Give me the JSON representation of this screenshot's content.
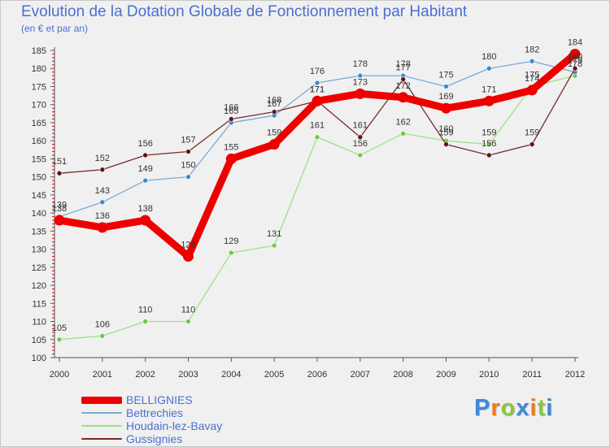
{
  "chart_data": {
    "type": "line",
    "title": "Evolution de la Dotation Globale de Fonctionnement par Habitant",
    "subtitle": "(en € et par an)",
    "xlabel": "",
    "ylabel": "",
    "x": [
      "2000",
      "2001",
      "2002",
      "2003",
      "2004",
      "2005",
      "2006",
      "2007",
      "2008",
      "2009",
      "2010",
      "2011",
      "2012"
    ],
    "ylim": [
      100,
      185
    ],
    "ystep": 5,
    "grid": false,
    "legend_position": "bottom-left",
    "series": [
      {
        "name": "Houdain-lez-Bavay",
        "color": "#9be383",
        "marker": "#72c64b",
        "width": 1.3,
        "values": [
          105,
          106,
          110,
          110,
          129,
          131,
          161,
          156,
          162,
          160,
          159,
          175,
          178
        ]
      },
      {
        "name": "Bettrechies",
        "color": "#7baad5",
        "marker": "#3f87cc",
        "width": 1.3,
        "values": [
          139,
          143,
          149,
          150,
          165,
          167,
          176,
          178,
          178,
          175,
          180,
          182,
          179
        ]
      },
      {
        "name": "Gussignies",
        "color": "#7a2a2a",
        "marker": "#5e1515",
        "width": 1.3,
        "values": [
          151,
          152,
          156,
          157,
          166,
          168,
          171,
          161,
          177,
          159,
          156,
          159,
          180
        ]
      },
      {
        "name": "BELLIGNIES",
        "color": "#ee0000",
        "marker": "#ee0000",
        "width": 9,
        "values": [
          138,
          136,
          138,
          128,
          155,
          159,
          171,
          173,
          172,
          169,
          171,
          174,
          184
        ]
      }
    ],
    "legend_order": [
      "BELLIGNIES",
      "Bettrechies",
      "Houdain-lez-Bavay",
      "Gussignies"
    ]
  },
  "brand": {
    "letters": [
      {
        "ch": "P",
        "color": "#3c8ad8"
      },
      {
        "ch": "r",
        "color": "#f07b1c"
      },
      {
        "ch": "o",
        "color": "#8cc63f"
      },
      {
        "ch": "x",
        "color": "#3c8ad8"
      },
      {
        "ch": "i",
        "color": "#f07b1c"
      },
      {
        "ch": "t",
        "color": "#8cc63f"
      },
      {
        "ch": "i",
        "color": "#3c8ad8"
      }
    ]
  }
}
